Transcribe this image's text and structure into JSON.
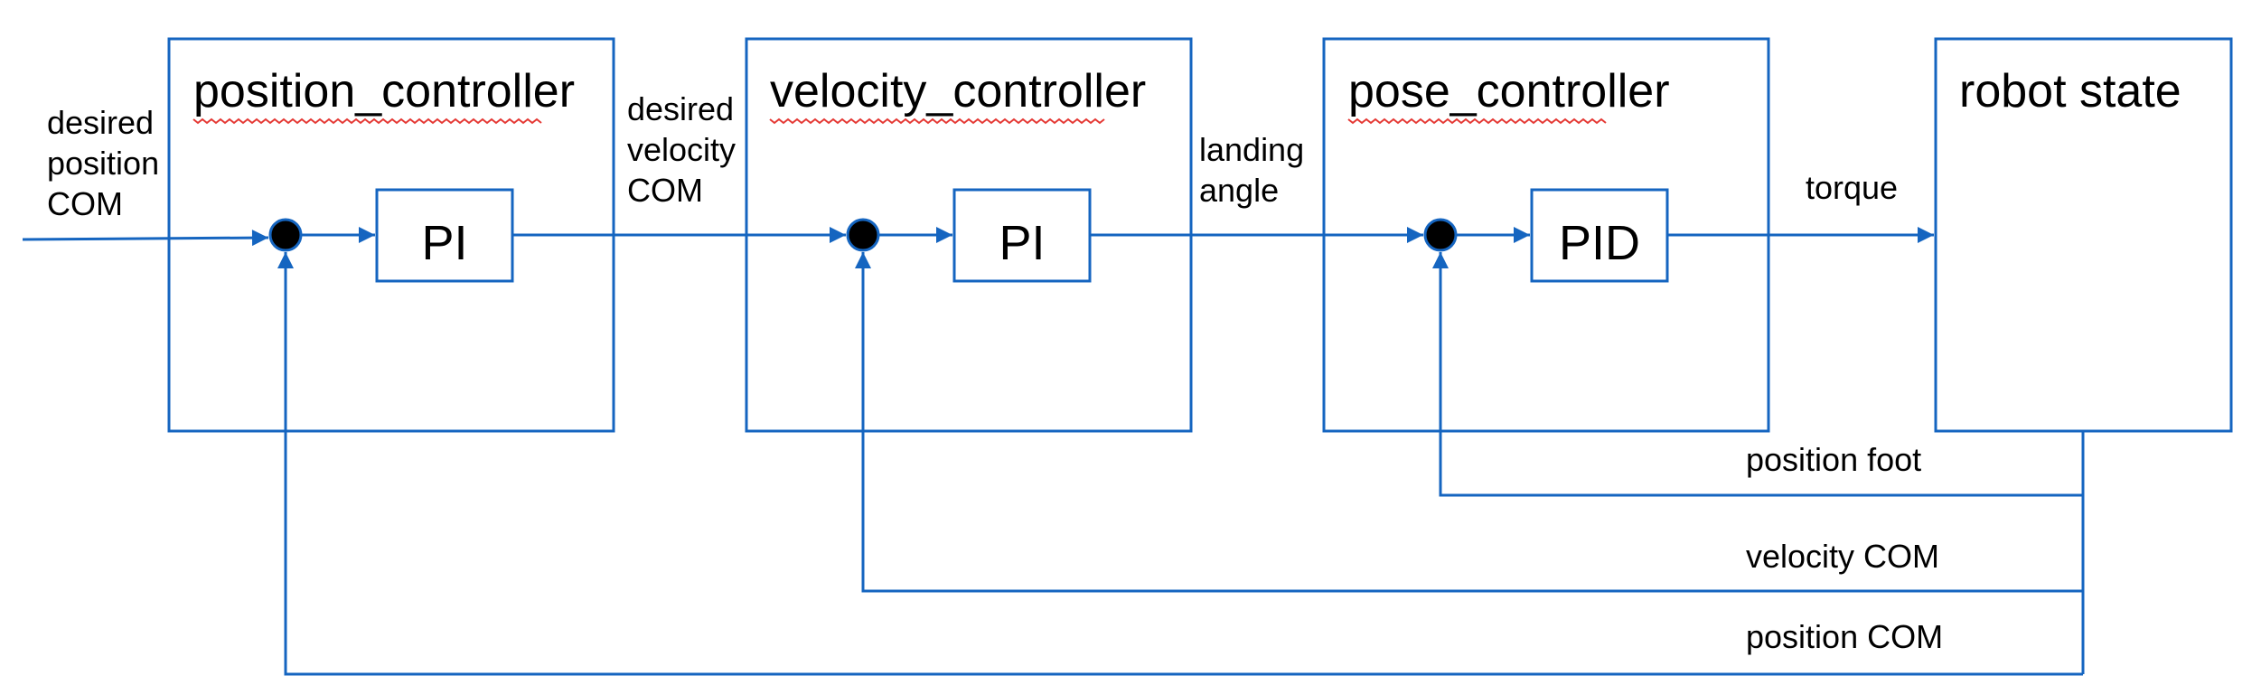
{
  "blocks": {
    "position_controller": {
      "title": "position_controller",
      "gain": "PI"
    },
    "velocity_controller": {
      "title": "velocity_controller",
      "gain": "PI"
    },
    "pose_controller": {
      "title": "pose_controller",
      "gain": "PID"
    },
    "robot_state": {
      "title": "robot state"
    }
  },
  "signals": {
    "desired_position": [
      "desired",
      "position",
      "COM"
    ],
    "desired_velocity": [
      "desired",
      "velocity",
      "COM"
    ],
    "landing_angle": [
      "landing",
      "angle"
    ],
    "torque": "torque",
    "position_foot": "position foot",
    "velocity_com": "velocity COM",
    "position_com": "position COM"
  },
  "colors": {
    "line": "#1565c0",
    "junction": "#000000",
    "spellcheck": "#e53935"
  }
}
